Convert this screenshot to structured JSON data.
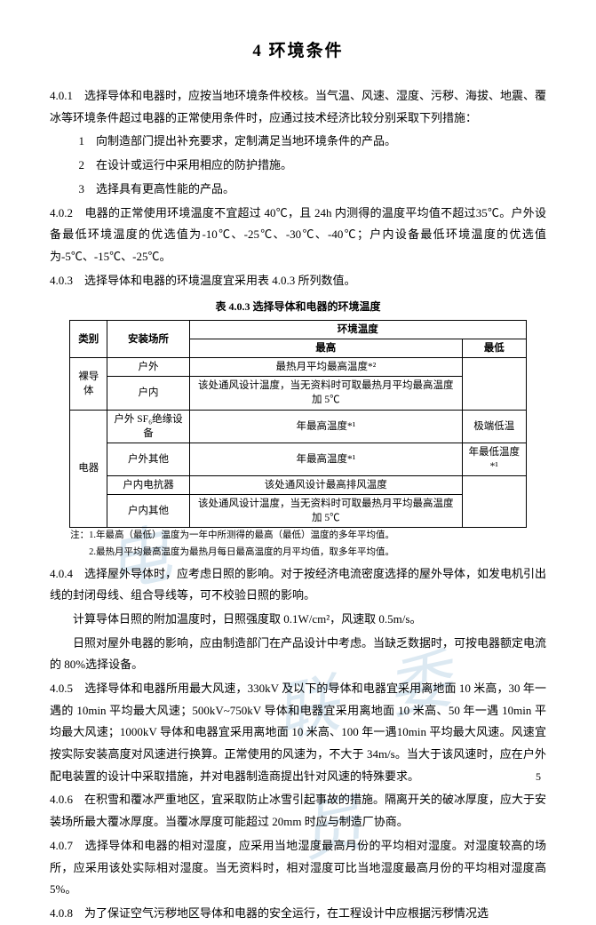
{
  "title": "4  环境条件",
  "watermark1": "电",
  "watermark2": "联 委 员",
  "p401a": "4.0.1　选择导体和电器时，应按当地环境条件校核。当气温、风速、湿度、污秽、海拔、地震、覆冰等环境条件超过电器的正常使用条件时，应通过技术经济比较分别采取下列措施：",
  "li1": "1　向制造部门提出补充要求，定制满足当地环境条件的产品。",
  "li2": "2　在设计或运行中采用相应的防护措施。",
  "li3": "3　选择具有更高性能的产品。",
  "p402": "4.0.2　电器的正常使用环境温度不宜超过 40℃，且 24h 内测得的温度平均值不超过35℃。户外设备最低环境温度的优选值为-10℃、-25℃、-30℃、-40℃；户内设备最低环境温度的优选值为-5℃、-15℃、-25℃。",
  "p403": "4.0.3　选择导体和电器的环境温度宜采用表 4.0.3 所列数值。",
  "tableCaption": "表 4.0.3 选择导体和电器的环境温度",
  "th_cat": "类别",
  "th_loc": "安装场所",
  "th_env": "环境温度",
  "th_max": "最高",
  "th_min": "最低",
  "r1c1": "裸导体",
  "r1_loc1": "户外",
  "r1_max1": "最热月平均最高温度*²",
  "r1_loc2": "户内",
  "r1_max2": "该处通风设计温度，当无资料时可取最热月平均最高温度加 5℃",
  "r2c1": "电器",
  "r2_loc1": "户外 SF₆绝缘设备",
  "r2_max1": "年最高温度*¹",
  "r2_min1": "极端低温",
  "r2_loc2": "户外其他",
  "r2_max2": "年最高温度*¹",
  "r2_min2": "年最低温度*¹",
  "r2_loc3": "户内电抗器",
  "r2_max3": "该处通风设计最高排风温度",
  "r2_loc4": "户内其他",
  "r2_max4": "该处通风设计温度，当无资料时可取最热月平均最高温度加 5℃",
  "note1": "注：1.年最高（最低）温度为一年中所测得的最高（最低）温度的多年平均值。",
  "note2": "　　2.最热月平均最高温度为最热月每日最高温度的月平均值，取多年平均值。",
  "p404": "4.0.4　选择屋外导体时，应考虑日照的影响。对于按经济电流密度选择的屋外导体，如发电机引出线的封闭母线、组合导线等，可不校验日照的影响。",
  "p404b": "计算导体日照的附加温度时，日照强度取 0.1W/cm²，风速取 0.5m/s。",
  "p404c": "日照对屋外电器的影响，应由制造部门在产品设计中考虑。当缺乏数据时，可按电器额定电流的 80%选择设备。",
  "p405": "4.0.5　选择导体和电器所用最大风速，330kV 及以下的导体和电器宜采用离地面 10 米高，30 年一遇的 10min 平均最大风速；500kV~750kV 导体和电器宜采用离地面 10 米高、50 年一遇 10min 平均最大风速；1000kV 导体和电器宜采用离地面 10 米高、100 年一遇10min 平均最大风速。风速宜按实际安装高度对风速进行换算。正常使用的风速为，不大于 34m/s。当大于该风速时，应在户外配电装置的设计中采取措施，并对电器制造商提出针对风速的特殊要求。",
  "p406": "4.0.6　在积雪和覆冰严重地区，宜采取防止冰雪引起事故的措施。隔离开关的破冰厚度，应大于安装场所最大覆冰厚度。当覆冰厚度可能超过 20mm 时应与制造厂协商。",
  "p407": "4.0.7　选择导体和电器的相对湿度，应采用当地湿度最高月份的平均相对湿度。对湿度较高的场所，应采用该处实际相对湿度。当无资料时，相对湿度可比当地湿度最高月份的平均相对湿度高 5%。",
  "p408": "4.0.8　为了保证空气污秽地区导体和电器的安全运行，在工程设计中应根据污秽情况选",
  "pageNum": "5"
}
